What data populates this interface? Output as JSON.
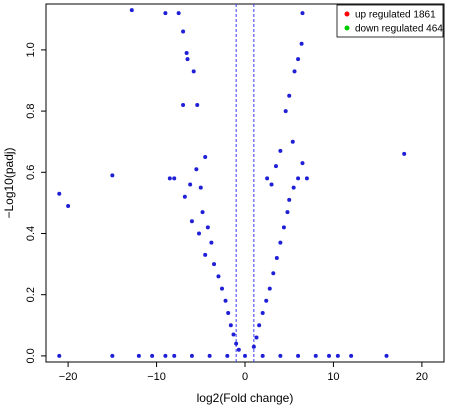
{
  "chart_data": {
    "type": "scatter",
    "title": "",
    "xlabel": "log2(Fold change)",
    "ylabel": "−Log10(padj)",
    "xlim": [
      -22.5,
      22.5
    ],
    "ylim": [
      -0.02,
      1.15
    ],
    "x_ticks": [
      -20,
      -10,
      0,
      10,
      20
    ],
    "y_ticks": [
      0.0,
      0.2,
      0.4,
      0.6,
      0.8,
      1.0
    ],
    "x_tick_labels": [
      "−20",
      "−10",
      "0",
      "10",
      "20"
    ],
    "y_tick_labels": [
      "0.0",
      "0.2",
      "0.4",
      "0.6",
      "0.8",
      "1.0"
    ],
    "threshold_lines_x": [
      -1,
      1
    ],
    "point_color": "#1f1fd6",
    "threshold_color": "#3b3bff",
    "grid": false,
    "legend_position": "top-right",
    "legend": [
      {
        "label": "up regulated 1861",
        "color": "#ff0000"
      },
      {
        "label": "down regulated 464",
        "color": "#00cc00"
      }
    ],
    "series": [
      {
        "values": [
          [
            -21.0,
            0.53
          ],
          [
            -20.0,
            0.49
          ],
          [
            -15.0,
            0.59
          ],
          [
            -12.8,
            1.13
          ],
          [
            -9.0,
            1.12
          ],
          [
            -7.5,
            1.12
          ],
          [
            -7.0,
            1.06
          ],
          [
            -6.6,
            0.99
          ],
          [
            -6.5,
            0.97
          ],
          [
            -7.0,
            0.82
          ],
          [
            -5.4,
            0.82
          ],
          [
            -5.8,
            0.93
          ],
          [
            -8.5,
            0.58
          ],
          [
            -8.0,
            0.58
          ],
          [
            -4.5,
            0.65
          ],
          [
            -6.2,
            0.56
          ],
          [
            -5.5,
            0.61
          ],
          [
            -6.8,
            0.52
          ],
          [
            -5.0,
            0.55
          ],
          [
            -4.8,
            0.47
          ],
          [
            -6.0,
            0.44
          ],
          [
            -5.2,
            0.4
          ],
          [
            -4.2,
            0.42
          ],
          [
            -3.8,
            0.37
          ],
          [
            -4.5,
            0.33
          ],
          [
            -3.5,
            0.3
          ],
          [
            -3.0,
            0.26
          ],
          [
            -2.6,
            0.22
          ],
          [
            -2.2,
            0.18
          ],
          [
            -1.9,
            0.14
          ],
          [
            -1.6,
            0.1
          ],
          [
            -1.3,
            0.07
          ],
          [
            -1.0,
            0.04
          ],
          [
            -0.7,
            0.02
          ],
          [
            1.0,
            0.03
          ],
          [
            1.3,
            0.06
          ],
          [
            1.6,
            0.1
          ],
          [
            2.0,
            0.14
          ],
          [
            2.4,
            0.18
          ],
          [
            2.8,
            0.22
          ],
          [
            3.2,
            0.27
          ],
          [
            3.6,
            0.32
          ],
          [
            4.0,
            0.37
          ],
          [
            4.4,
            0.42
          ],
          [
            4.8,
            0.47
          ],
          [
            5.0,
            0.51
          ],
          [
            5.5,
            0.55
          ],
          [
            6.0,
            0.58
          ],
          [
            6.5,
            0.63
          ],
          [
            5.4,
            0.7
          ],
          [
            4.6,
            0.8
          ],
          [
            5.0,
            0.85
          ],
          [
            5.6,
            0.93
          ],
          [
            6.0,
            0.97
          ],
          [
            6.4,
            1.02
          ],
          [
            6.5,
            1.12
          ],
          [
            4.0,
            0.67
          ],
          [
            3.5,
            0.62
          ],
          [
            2.5,
            0.58
          ],
          [
            3.0,
            0.56
          ],
          [
            7.0,
            0.58
          ],
          [
            18.0,
            0.66
          ],
          [
            -21.0,
            0.0
          ],
          [
            -15.0,
            0.0
          ],
          [
            -12.0,
            0.0
          ],
          [
            -10.5,
            0.0
          ],
          [
            -9.0,
            0.0
          ],
          [
            -8.0,
            0.0
          ],
          [
            -6.0,
            0.0
          ],
          [
            -4.0,
            0.0
          ],
          [
            -2.0,
            0.0
          ],
          [
            0.0,
            0.0
          ],
          [
            2.0,
            0.0
          ],
          [
            4.0,
            0.0
          ],
          [
            6.0,
            0.0
          ],
          [
            8.0,
            0.0
          ],
          [
            9.5,
            0.0
          ],
          [
            10.5,
            0.0
          ],
          [
            12.0,
            0.0
          ],
          [
            16.0,
            0.0
          ]
        ]
      }
    ]
  }
}
